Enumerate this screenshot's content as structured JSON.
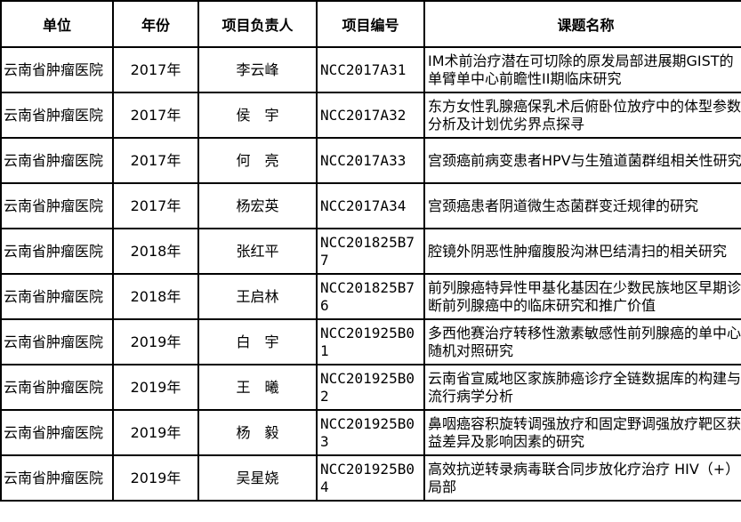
{
  "page": {
    "background_color": "#ffffff",
    "border_color": "#000000",
    "text_color": "#000000"
  },
  "table": {
    "headers": {
      "unit": "单位",
      "year": "年份",
      "leader": "项目负责人",
      "code": "项目编号",
      "title": "课题名称"
    },
    "rows": [
      {
        "unit": "云南省肿瘤医院",
        "year": "2017年",
        "leader": "李云峰",
        "code": "NCC2017A31",
        "title": "IM术前治疗潜在可切除的原发局部进展期GIST的单臂单中心前瞻性II期临床研究"
      },
      {
        "unit": "云南省肿瘤医院",
        "year": "2017年",
        "leader": "侯　宇",
        "code": "NCC2017A32",
        "title": "东方女性乳腺癌保乳术后俯卧位放疗中的体型参数分析及计划优劣界点探寻"
      },
      {
        "unit": "云南省肿瘤医院",
        "year": "2017年",
        "leader": "何　亮",
        "code": "NCC2017A33",
        "title": "宫颈癌前病变患者HPV与生殖道菌群组相关性研究"
      },
      {
        "unit": "云南省肿瘤医院",
        "year": "2017年",
        "leader": "杨宏英",
        "code": "NCC2017A34",
        "title": "宫颈癌患者阴道微生态菌群变迁规律的研究"
      },
      {
        "unit": "云南省肿瘤医院",
        "year": "2018年",
        "leader": "张红平",
        "code": "NCC201825B77",
        "title": "腔镜外阴恶性肿瘤腹股沟淋巴结清扫的相关研究"
      },
      {
        "unit": "云南省肿瘤医院",
        "year": "2018年",
        "leader": "王启林",
        "code": "NCC201825B76",
        "title": "前列腺癌特异性甲基化基因在少数民族地区早期诊断前列腺癌中的临床研究和推广价值"
      },
      {
        "unit": "云南省肿瘤医院",
        "year": "2019年",
        "leader": "白　宇",
        "code": "NCC201925B01",
        "title": "多西他赛治疗转移性激素敏感性前列腺癌的单中心随机对照研究"
      },
      {
        "unit": "云南省肿瘤医院",
        "year": "2019年",
        "leader": "王　曦",
        "code": "NCC201925B02",
        "title": "云南省宣威地区家族肺癌诊疗全链数据库的构建与流行病学分析"
      },
      {
        "unit": "云南省肿瘤医院",
        "year": "2019年",
        "leader": "杨　毅",
        "code": "NCC201925B03",
        "title": "鼻咽癌容积旋转调强放疗和固定野调强放疗靶区获益差异及影响因素的研究"
      },
      {
        "unit": "云南省肿瘤医院",
        "year": "2019年",
        "leader": "吴星娆",
        "code": "NCC201925B04",
        "title": "高效抗逆转录病毒联合同步放化疗治疗 HIV（+）局部"
      }
    ]
  }
}
